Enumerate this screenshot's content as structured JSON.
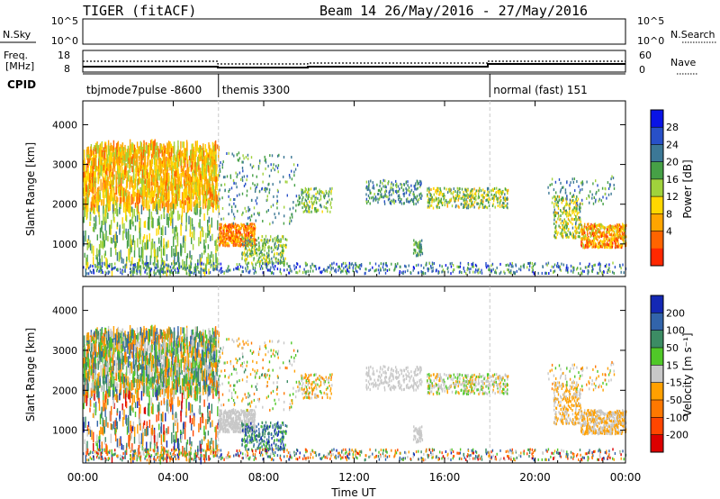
{
  "header": {
    "title": "TIGER (fitACF)",
    "subtitle": "Beam 14 26/May/2016 - 27/May/2016"
  },
  "top_panels": {
    "nsky_label": "N.Sky",
    "nsky_ticks": [
      "10^5",
      "10^0"
    ],
    "nsearch_label": "N.Search",
    "freq_label_1": "Freq.",
    "freq_label_2": "[MHz]",
    "freq_ticks": [
      "18",
      "8"
    ],
    "nave_ticks": [
      "60",
      "0"
    ],
    "nave_label": "Nave",
    "cpid_label": "CPID"
  },
  "cpid_segments": [
    {
      "label": "tbjmode7pulse -8600",
      "start_hr": 0,
      "end_hr": 6
    },
    {
      "label": "themis 3300",
      "start_hr": 6,
      "end_hr": 18
    },
    {
      "label": "normal (fast) 151",
      "start_hr": 18,
      "end_hr": 24
    }
  ],
  "chart_data": [
    {
      "type": "heatmap",
      "name": "power",
      "ylabel": "Slant Range [km]",
      "ylim": [
        180,
        4600
      ],
      "yticks": [
        "4000",
        "3000",
        "2000",
        "1000"
      ],
      "xlim_hours": [
        0,
        24
      ],
      "colorbar_label": "Power [dB]",
      "colorbar_ticks": [
        "28",
        "24",
        "20",
        "16",
        "12",
        "8",
        "4"
      ],
      "colors": [
        "#0a14e6",
        "#2850c8",
        "#3c7896",
        "#46a046",
        "#a0d23c",
        "#ffd700",
        "#ffa500",
        "#ff6400",
        "#ff2800"
      ]
    },
    {
      "type": "heatmap",
      "name": "velocity",
      "ylabel": "Slant Range [km]",
      "ylim": [
        180,
        4600
      ],
      "yticks": [
        "4000",
        "3000",
        "2000",
        "1000"
      ],
      "xlim_hours": [
        0,
        24
      ],
      "xlabel": "Time UT",
      "xticks": [
        "00:00",
        "04:00",
        "08:00",
        "12:00",
        "16:00",
        "20:00",
        "00:00"
      ],
      "colorbar_label": "Velocity [m s⁻¹]",
      "colorbar_ticks": [
        "200",
        "100",
        "50",
        "15",
        "-15",
        "-50",
        "-100",
        "-200"
      ],
      "colors": [
        "#1428b4",
        "#3264aa",
        "#3c8c64",
        "#50c828",
        "#c8c8c8",
        "#ffa000",
        "#ff7800",
        "#ff4600",
        "#dc0000"
      ]
    }
  ]
}
